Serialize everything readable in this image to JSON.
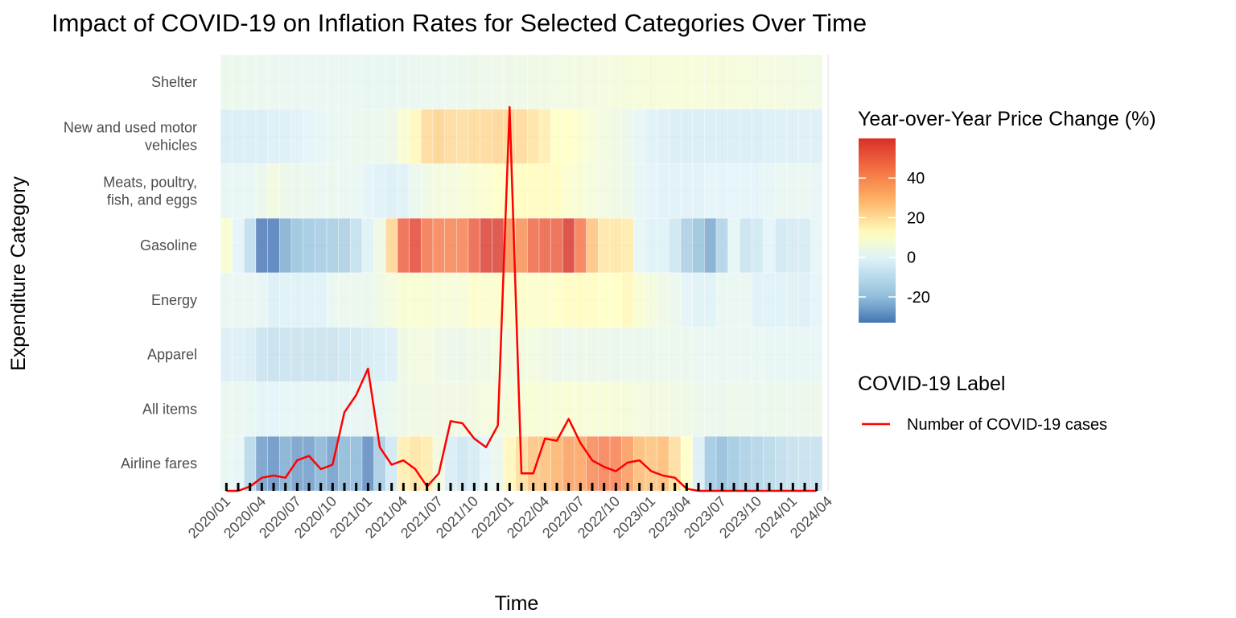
{
  "chart_data": {
    "type": "heatmap",
    "title": "Impact of COVID-19 on Inflation Rates for Selected Categories Over Time",
    "xlabel": "Time",
    "ylabel": "Expenditure Category",
    "months": [
      "2020/01",
      "2020/02",
      "2020/03",
      "2020/04",
      "2020/05",
      "2020/06",
      "2020/07",
      "2020/08",
      "2020/09",
      "2020/10",
      "2020/11",
      "2020/12",
      "2021/01",
      "2021/02",
      "2021/03",
      "2021/04",
      "2021/05",
      "2021/06",
      "2021/07",
      "2021/08",
      "2021/09",
      "2021/10",
      "2021/11",
      "2021/12",
      "2022/01",
      "2022/02",
      "2022/03",
      "2022/04",
      "2022/05",
      "2022/06",
      "2022/07",
      "2022/08",
      "2022/09",
      "2022/10",
      "2022/11",
      "2022/12",
      "2023/01",
      "2023/02",
      "2023/03",
      "2023/04",
      "2023/05",
      "2023/06",
      "2023/07",
      "2023/08",
      "2023/09",
      "2023/10",
      "2023/11",
      "2023/12",
      "2024/01",
      "2024/02",
      "2024/03"
    ],
    "x_tick_labels": [
      "2020/01",
      "2020/04",
      "2020/07",
      "2020/10",
      "2021/01",
      "2021/04",
      "2021/07",
      "2021/10",
      "2022/01",
      "2022/04",
      "2022/07",
      "2022/10",
      "2023/01",
      "2023/04",
      "2023/07",
      "2023/10",
      "2024/01",
      "2024/04"
    ],
    "categories": [
      {
        "label": "Shelter",
        "lines": [
          "Shelter"
        ]
      },
      {
        "label": "New and used motor vehicles",
        "lines": [
          "New and used motor",
          "vehicles"
        ]
      },
      {
        "label": "Meats, poultry, fish, and eggs",
        "lines": [
          "Meats, poultry,",
          "fish, and eggs"
        ]
      },
      {
        "label": "Gasoline",
        "lines": [
          "Gasoline"
        ]
      },
      {
        "label": "Energy",
        "lines": [
          "Energy"
        ]
      },
      {
        "label": "Apparel",
        "lines": [
          "Apparel"
        ]
      },
      {
        "label": "All items",
        "lines": [
          "All items"
        ]
      },
      {
        "label": "Airline fares",
        "lines": [
          "Airline fares"
        ]
      }
    ],
    "values": [
      [
        3.3,
        3.1,
        3.0,
        2.6,
        2.3,
        2.2,
        2.0,
        2.0,
        2.0,
        2.0,
        1.9,
        1.8,
        1.6,
        1.6,
        1.7,
        2.1,
        2.2,
        2.6,
        2.8,
        2.8,
        3.2,
        3.5,
        3.8,
        4.1,
        4.4,
        4.7,
        5.0,
        5.1,
        5.5,
        5.6,
        5.7,
        6.2,
        6.6,
        6.9,
        7.1,
        7.5,
        7.9,
        8.1,
        8.2,
        8.1,
        8.0,
        7.8,
        7.7,
        7.3,
        7.2,
        6.7,
        6.5,
        6.2,
        6.0,
        5.8,
        5.6
      ],
      [
        -3,
        -3,
        -3,
        -3,
        -2,
        -2,
        -1,
        0,
        1,
        2,
        2,
        3,
        3,
        3,
        4,
        9,
        14,
        21,
        23,
        21,
        20,
        21,
        21,
        22,
        22,
        21,
        19,
        16,
        12,
        12,
        10,
        8,
        6,
        5,
        3,
        1,
        -1,
        -2,
        -3,
        -3,
        -3,
        -3,
        -3,
        -3,
        -3,
        -3,
        -2,
        -2,
        -2,
        -2,
        -2
      ],
      [
        1,
        1,
        1,
        3,
        6,
        4,
        3,
        3,
        2,
        3,
        2,
        2,
        0,
        -1,
        -2,
        -1,
        3,
        5,
        7,
        7,
        8,
        9,
        10,
        12,
        12,
        13,
        13,
        13,
        13,
        10,
        9,
        7,
        6,
        5,
        4,
        1,
        0,
        -1,
        -1,
        -1,
        -1,
        0,
        0,
        0,
        0,
        0,
        1,
        2,
        2,
        2,
        1
      ],
      [
        9,
        0,
        -10,
        -33,
        -33,
        -24,
        -20,
        -18,
        -17,
        -16,
        -15,
        -9,
        -1,
        5,
        22,
        49,
        56,
        45,
        42,
        41,
        42,
        50,
        58,
        58,
        38,
        38,
        48,
        50,
        50,
        60,
        44,
        26,
        18,
        18,
        17,
        1,
        -1,
        -1,
        -6,
        -15,
        -20,
        -25,
        -14,
        1,
        -7,
        -5,
        0,
        -5,
        -4,
        -4,
        1
      ],
      [
        2,
        2,
        2,
        1,
        -2,
        -1,
        -1,
        -1,
        -1,
        2,
        3,
        3,
        3,
        5,
        7,
        9,
        9,
        9,
        8,
        8,
        8,
        11,
        10,
        11,
        11,
        11,
        11,
        11,
        12,
        13,
        13,
        13,
        12,
        12,
        14,
        9,
        7,
        5,
        3,
        0,
        -1,
        -1,
        2,
        2,
        2,
        -1,
        -1,
        -1,
        -1,
        -2,
        0
      ],
      [
        -2,
        -2,
        -3,
        -7,
        -8,
        -7,
        -7,
        -7,
        -7,
        -7,
        -6,
        -5,
        -4,
        -3,
        -2,
        5,
        6,
        6,
        5,
        4,
        4,
        5,
        5,
        6,
        6,
        6,
        6,
        5,
        4,
        3,
        4,
        4,
        4,
        3,
        3,
        3,
        3,
        3,
        3,
        3,
        2,
        2,
        2,
        2,
        2,
        2,
        1,
        1,
        1,
        1,
        1
      ],
      [
        2.5,
        2.3,
        1.5,
        0.3,
        0.1,
        0.6,
        1.0,
        1.3,
        1.4,
        1.2,
        1.2,
        1.4,
        1.4,
        1.7,
        2.6,
        4.2,
        5.0,
        5.4,
        5.4,
        5.3,
        5.4,
        6.2,
        6.8,
        7.0,
        7.5,
        7.9,
        8.5,
        8.3,
        8.6,
        9.1,
        8.5,
        8.3,
        8.2,
        7.7,
        7.1,
        6.5,
        6.4,
        6.0,
        5.0,
        4.9,
        4.0,
        3.0,
        3.2,
        3.7,
        3.7,
        3.2,
        3.1,
        3.4,
        3.1,
        3.2,
        3.5
      ],
      [
        2,
        1,
        -12,
        -27,
        -29,
        -24,
        -27,
        -27,
        -23,
        -27,
        -22,
        -22,
        -30,
        -16,
        -5,
        16,
        19,
        17,
        6,
        -3,
        -6,
        -4,
        0,
        3,
        14,
        20,
        26,
        27,
        30,
        35,
        34,
        40,
        43,
        42,
        36,
        28,
        26,
        28,
        20,
        12,
        -2,
        -18,
        -21,
        -18,
        -15,
        -14,
        -12,
        -10,
        -8,
        -8,
        -8
      ]
    ],
    "color_scale": {
      "min": -33,
      "max": 60,
      "stops": [
        {
          "value": -33,
          "color": "#4575b4"
        },
        {
          "value": -20,
          "color": "#91bfdb"
        },
        {
          "value": 0,
          "color": "#e0f3f8"
        },
        {
          "value": 12,
          "color": "#ffffbf"
        },
        {
          "value": 30,
          "color": "#fdae61"
        },
        {
          "value": 45,
          "color": "#f46d43"
        },
        {
          "value": 60,
          "color": "#d73027"
        }
      ]
    },
    "legend_fill": {
      "title": "Year-over-Year Price Change (%)",
      "ticks": [
        {
          "value": 40,
          "label": "40"
        },
        {
          "value": 20,
          "label": "20"
        },
        {
          "value": 0,
          "label": "0"
        },
        {
          "value": -20,
          "label": "-20"
        }
      ]
    },
    "legend_line": {
      "title": "COVID-19 Label",
      "entry": "Number of COVID-19 cases",
      "color": "#ff0000"
    },
    "covid_line": [
      0,
      0,
      0.01,
      0.03,
      0.035,
      0.03,
      0.07,
      0.08,
      0.05,
      0.06,
      0.18,
      0.22,
      0.28,
      0.1,
      0.06,
      0.07,
      0.05,
      0.01,
      0.04,
      0.16,
      0.155,
      0.12,
      0.1,
      0.15,
      0.88,
      0.04,
      0.04,
      0.12,
      0.115,
      0.165,
      0.11,
      0.07,
      0.055,
      0.045,
      0.065,
      0.07,
      0.045,
      0.035,
      0.03,
      0.005,
      0,
      0,
      0,
      0,
      0,
      0,
      0,
      0,
      0,
      0,
      0
    ]
  }
}
